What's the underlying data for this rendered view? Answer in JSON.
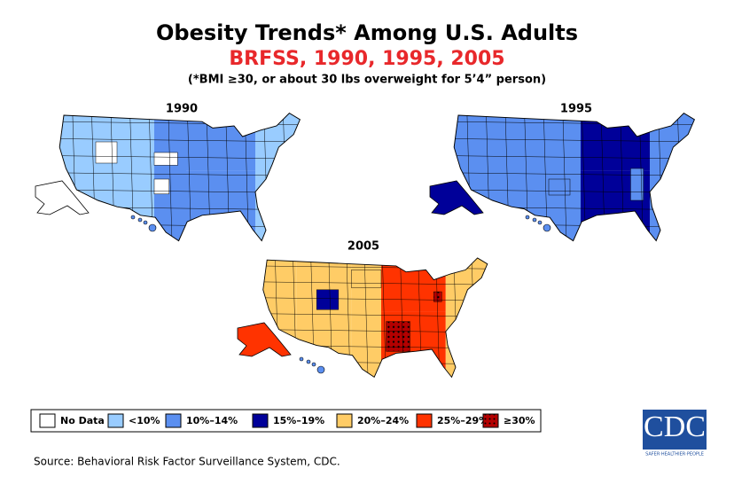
{
  "header": {
    "title": "Obesity Trends* Among U.S. Adults",
    "subtitle": "BRFSS, 1990, 1995, 2005",
    "note": "(*BMI ≥30, or about 30 lbs overweight for 5’4” person)"
  },
  "maps": [
    {
      "label": "1990"
    },
    {
      "label": "1995"
    },
    {
      "label": "2005"
    }
  ],
  "legend": {
    "items": [
      {
        "label": "No Data",
        "color": "#ffffff"
      },
      {
        "label": "<10%",
        "color": "#99ccff"
      },
      {
        "label": "10%–14%",
        "color": "#5b8ff0"
      },
      {
        "label": "15%–19%",
        "color": "#000099"
      },
      {
        "label": "20%–24%",
        "color": "#ffcc66"
      },
      {
        "label": "25%–29%",
        "color": "#ff3300"
      },
      {
        "label": "≥30%",
        "color": "#b30000"
      }
    ]
  },
  "logo": {
    "text": "CDC",
    "tagline": "SAFER·HEALTHIER·PEOPLE"
  },
  "source": "Source: Behavioral Risk Factor Surveillance System, CDC."
}
